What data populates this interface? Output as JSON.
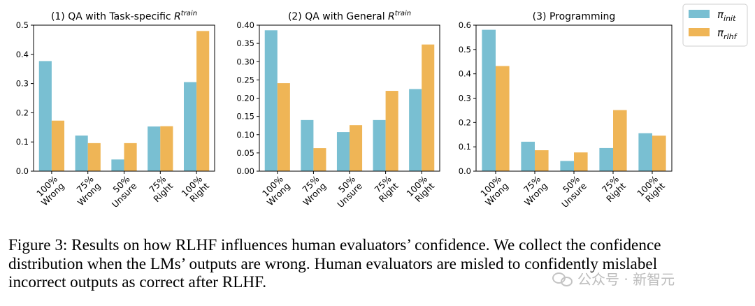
{
  "chart_data": [
    {
      "type": "bar",
      "title": "(1) QA with Task-specific R",
      "title_sup": "train",
      "categories": [
        [
          "100%",
          "Wrong"
        ],
        [
          "75%",
          "Wrong"
        ],
        [
          "50%",
          "Unsure"
        ],
        [
          "75%",
          "Right"
        ],
        [
          "100%",
          "Right"
        ]
      ],
      "series": [
        {
          "key": "init",
          "values": [
            0.377,
            0.122,
            0.04,
            0.153,
            0.305
          ]
        },
        {
          "key": "rlhf",
          "values": [
            0.173,
            0.096,
            0.096,
            0.154,
            0.48
          ]
        }
      ],
      "ylim": [
        0,
        0.5
      ],
      "yticks": [
        0,
        0.1,
        0.2,
        0.3,
        0.4,
        0.5
      ],
      "ytick_labels": [
        "0.0",
        "0.1",
        "0.2",
        "0.3",
        "0.4",
        "0.5"
      ],
      "grid": false
    },
    {
      "type": "bar",
      "title": "(2) QA with General R",
      "title_sup": "train",
      "categories": [
        [
          "100%",
          "Wrong"
        ],
        [
          "75%",
          "Wrong"
        ],
        [
          "50%",
          "Unsure"
        ],
        [
          "75%",
          "Right"
        ],
        [
          "100%",
          "Right"
        ]
      ],
      "series": [
        {
          "key": "init",
          "values": [
            0.386,
            0.14,
            0.107,
            0.14,
            0.225
          ]
        },
        {
          "key": "rlhf",
          "values": [
            0.241,
            0.063,
            0.126,
            0.22,
            0.347
          ]
        }
      ],
      "ylim": [
        0,
        0.4
      ],
      "yticks": [
        0,
        0.05,
        0.1,
        0.15,
        0.2,
        0.25,
        0.3,
        0.35,
        0.4
      ],
      "ytick_labels": [
        "0.00",
        "0.05",
        "0.10",
        "0.15",
        "0.20",
        "0.25",
        "0.30",
        "0.35",
        "0.40"
      ],
      "grid": false
    },
    {
      "type": "bar",
      "title": "(3) Programming",
      "title_sup": "",
      "categories": [
        [
          "100%",
          "Wrong"
        ],
        [
          "75%",
          "Wrong"
        ],
        [
          "50%",
          "Unsure"
        ],
        [
          "75%",
          "Right"
        ],
        [
          "100%",
          "Right"
        ]
      ],
      "series": [
        {
          "key": "init",
          "values": [
            0.581,
            0.121,
            0.042,
            0.095,
            0.156
          ]
        },
        {
          "key": "rlhf",
          "values": [
            0.432,
            0.086,
            0.077,
            0.251,
            0.146
          ]
        }
      ],
      "ylim": [
        0,
        0.6
      ],
      "yticks": [
        0,
        0.1,
        0.2,
        0.3,
        0.4,
        0.5,
        0.6
      ],
      "ytick_labels": [
        "0.0",
        "0.1",
        "0.2",
        "0.3",
        "0.4",
        "0.5",
        "0.6"
      ],
      "grid": false
    }
  ],
  "legend": {
    "placement": "top-right",
    "items": [
      {
        "key": "init",
        "symbol": "π",
        "subscript": "init",
        "color": "#79bfd2"
      },
      {
        "key": "rlhf",
        "symbol": "π",
        "subscript": "rlhf",
        "color": "#efb556"
      }
    ]
  },
  "caption": {
    "line1": "Figure 3: Results on how RLHF influences human evaluators’ confidence. We collect the confidence",
    "line2": "distribution when the LMs’ outputs are wrong. Human evaluators are misled to confidently mislabel",
    "line3": "incorrect outputs as correct after RLHF."
  },
  "watermark": {
    "text": "公众号 · 新智元",
    "icon": "wechat-icon"
  }
}
